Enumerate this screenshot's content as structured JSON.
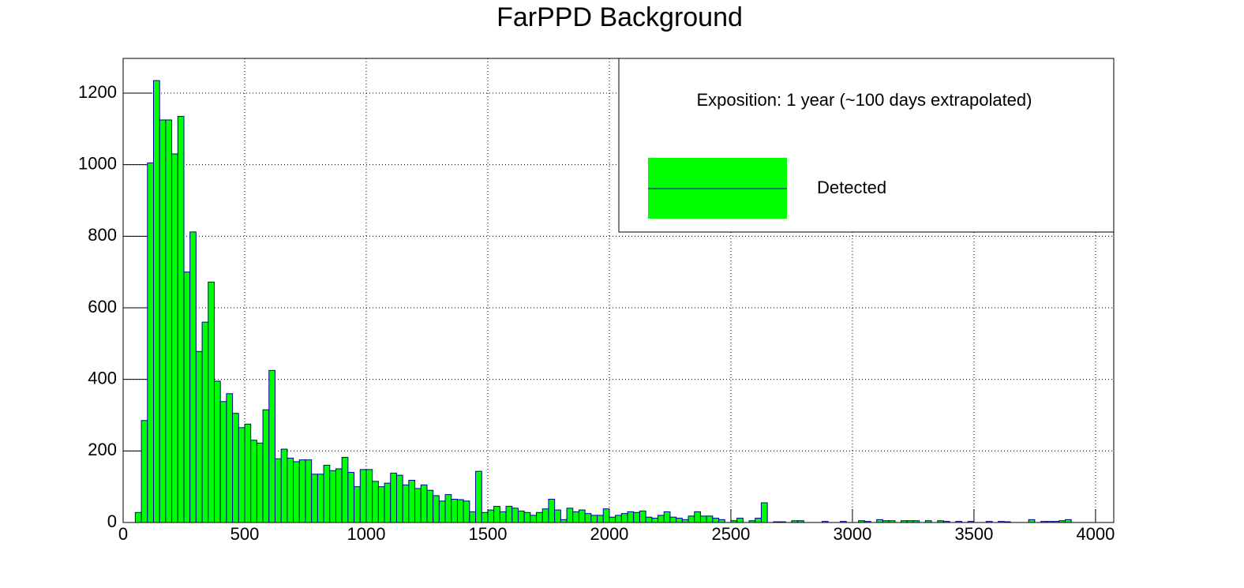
{
  "chart_data": {
    "type": "histogram",
    "title": "FarPPD Background",
    "legend_title": "Exposition: 1 year (~100 days extrapolated)",
    "bins": [
      0,
      25,
      50,
      75,
      100,
      125,
      150,
      175,
      200,
      225,
      250,
      275,
      300,
      325,
      350,
      375,
      400,
      425,
      450,
      475,
      500,
      525,
      550,
      575,
      600,
      625,
      650,
      675,
      700,
      725,
      750,
      775,
      800,
      825,
      850,
      875,
      900,
      925,
      950,
      975,
      1000,
      1025,
      1050,
      1075,
      1100,
      1125,
      1150,
      1175,
      1200,
      1225,
      1250,
      1275,
      1300,
      1325,
      1350,
      1375,
      1400,
      1425,
      1450,
      1475,
      1500,
      1525,
      1550,
      1575,
      1600,
      1625,
      1650,
      1675,
      1700,
      1725,
      1750,
      1775,
      1800,
      1825,
      1850,
      1875,
      1900,
      1925,
      1950,
      1975,
      2000,
      2025,
      2050,
      2075,
      2100,
      2125,
      2150,
      2175,
      2200,
      2225,
      2250,
      2275,
      2300,
      2325,
      2350,
      2375,
      2400,
      2425,
      2450,
      2475,
      2500,
      2525,
      2550,
      2575,
      2600,
      2625,
      2650,
      2675,
      2700,
      2725,
      2750,
      2775,
      2800,
      2825,
      2850,
      2875,
      2900,
      2925,
      2950,
      2975,
      3000,
      3025,
      3050,
      3075,
      3100,
      3125,
      3150,
      3175,
      3200,
      3225,
      3250,
      3275,
      3300,
      3325,
      3350,
      3375,
      3400,
      3425,
      3450,
      3475,
      3500,
      3525,
      3550,
      3575,
      3600,
      3625,
      3650,
      3675,
      3700,
      3725,
      3750,
      3775,
      3800,
      3825,
      3850,
      3875,
      3900,
      3925,
      3950,
      3975,
      4000,
      4025,
      4050,
      4075
    ],
    "series": [
      {
        "name": "Detected",
        "color": "#00ff00",
        "edge_color": "#000099",
        "values": [
          0,
          0,
          28,
          285,
          1005,
          1235,
          1125,
          1125,
          1030,
          1135,
          700,
          812,
          478,
          560,
          672,
          395,
          338,
          360,
          305,
          265,
          275,
          230,
          222,
          315,
          425,
          178,
          205,
          180,
          170,
          175,
          175,
          135,
          135,
          160,
          145,
          150,
          182,
          140,
          100,
          148,
          148,
          115,
          100,
          110,
          138,
          132,
          105,
          118,
          95,
          105,
          90,
          75,
          60,
          78,
          65,
          64,
          60,
          30,
          143,
          28,
          35,
          45,
          30,
          45,
          40,
          32,
          28,
          20,
          28,
          38,
          65,
          35,
          8,
          40,
          30,
          35,
          25,
          20,
          20,
          38,
          15,
          20,
          25,
          30,
          28,
          32,
          15,
          12,
          20,
          30,
          15,
          12,
          8,
          18,
          30,
          18,
          18,
          12,
          8,
          0,
          5,
          12,
          0,
          5,
          12,
          55,
          0,
          2,
          2,
          0,
          5,
          5,
          0,
          0,
          0,
          3,
          0,
          0,
          3,
          0,
          0,
          5,
          3,
          0,
          8,
          5,
          5,
          0,
          5,
          5,
          5,
          0,
          5,
          0,
          5,
          3,
          0,
          3,
          0,
          3,
          0,
          0,
          3,
          0,
          3,
          2,
          0,
          0,
          0,
          8,
          0,
          3,
          3,
          3,
          5,
          8,
          0,
          0,
          0,
          0,
          0,
          0,
          0
        ]
      }
    ],
    "xlim": [
      0,
      4075
    ],
    "ylim": [
      0,
      1297
    ],
    "xticks": [
      0,
      500,
      1000,
      1500,
      2000,
      2500,
      3000,
      3500,
      4000
    ],
    "yticks": [
      0,
      200,
      400,
      600,
      800,
      1000,
      1200
    ],
    "grid": true,
    "legend": "upper right"
  }
}
